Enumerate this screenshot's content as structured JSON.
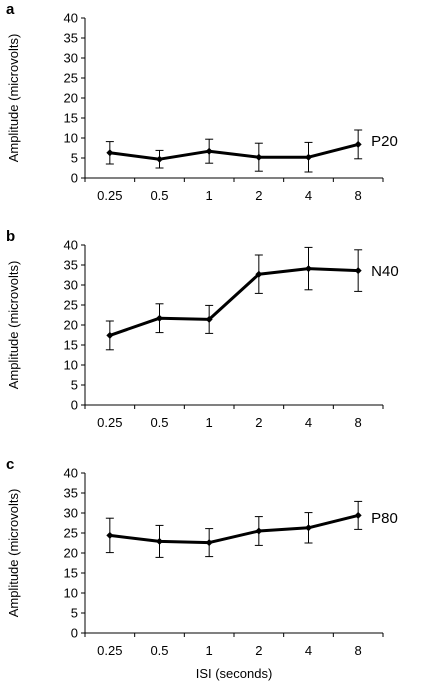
{
  "chart_data": [
    {
      "type": "line",
      "panel_label": "a",
      "categories": [
        "0.25",
        "0.5",
        "1",
        "2",
        "4",
        "8"
      ],
      "series": [
        {
          "name": "P20",
          "values": [
            6.3,
            4.7,
            6.7,
            5.2,
            5.2,
            8.4
          ],
          "error": [
            2.8,
            2.2,
            3.0,
            3.5,
            3.7,
            3.6
          ]
        }
      ],
      "ylabel": "Amplitude (microvolts)",
      "xlabel": "",
      "ylim": [
        0,
        40
      ],
      "yticks": [
        0,
        5,
        10,
        15,
        20,
        25,
        30,
        35,
        40
      ],
      "grid": false,
      "legend": "none"
    },
    {
      "type": "line",
      "panel_label": "b",
      "categories": [
        "0.25",
        "0.5",
        "1",
        "2",
        "4",
        "8"
      ],
      "series": [
        {
          "name": "N40",
          "values": [
            17.4,
            21.7,
            21.4,
            32.7,
            34.1,
            33.6
          ],
          "error": [
            3.6,
            3.6,
            3.5,
            4.8,
            5.3,
            5.2
          ]
        }
      ],
      "ylabel": "Amplitude (microvolts)",
      "xlabel": "",
      "ylim": [
        0,
        40
      ],
      "yticks": [
        0,
        5,
        10,
        15,
        20,
        25,
        30,
        35,
        40
      ],
      "grid": false,
      "legend": "none"
    },
    {
      "type": "line",
      "panel_label": "c",
      "categories": [
        "0.25",
        "0.5",
        "1",
        "2",
        "4",
        "8"
      ],
      "series": [
        {
          "name": "P80",
          "values": [
            24.4,
            22.9,
            22.6,
            25.5,
            26.3,
            29.4
          ],
          "error": [
            4.3,
            4.0,
            3.5,
            3.6,
            3.8,
            3.5
          ]
        }
      ],
      "ylabel": "Amplitude (microvolts)",
      "xlabel": "ISI (seconds)",
      "ylim": [
        0,
        40
      ],
      "yticks": [
        0,
        5,
        10,
        15,
        20,
        25,
        30,
        35,
        40
      ],
      "grid": false,
      "legend": "none"
    }
  ],
  "colors": {
    "line": "#000000",
    "axis": "#000000",
    "background": "#ffffff"
  }
}
